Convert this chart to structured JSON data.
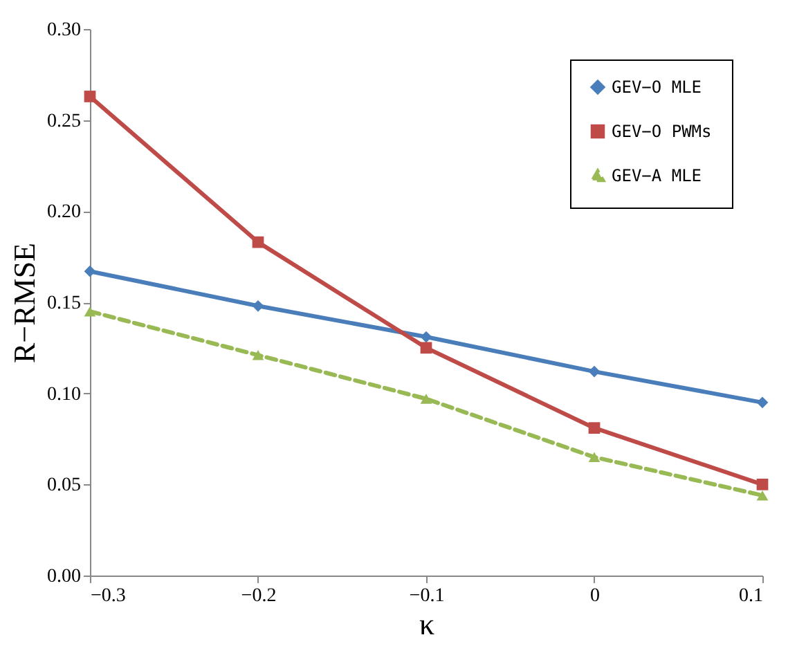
{
  "chart_data": {
    "type": "line",
    "xlabel": "κ",
    "ylabel": "R−RMSE",
    "x": [
      -0.3,
      -0.2,
      -0.1,
      0,
      0.1
    ],
    "series": [
      {
        "name": "GEV−O MLE",
        "color": "#4a7ebb",
        "marker": "diamond",
        "line_style": "solid",
        "values": [
          0.167,
          0.148,
          0.131,
          0.112,
          0.095
        ]
      },
      {
        "name": "GEV−O PWMs",
        "color": "#be4b48",
        "marker": "square",
        "line_style": "solid",
        "values": [
          0.263,
          0.183,
          0.125,
          0.081,
          0.05
        ]
      },
      {
        "name": "GEV−A MLE",
        "color": "#98b954",
        "marker": "triangle",
        "line_style": "dashed",
        "values": [
          0.145,
          0.121,
          0.097,
          0.065,
          0.044
        ]
      }
    ],
    "xlim": [
      -0.3,
      0.1
    ],
    "xticks": [
      {
        "value": -0.3,
        "label": "−0.3"
      },
      {
        "value": -0.2,
        "label": "−0.2"
      },
      {
        "value": -0.1,
        "label": "−0.1"
      },
      0,
      0.1
    ],
    "ylim": [
      0,
      0.3
    ],
    "yticks": [
      {
        "value": 0,
        "label": "0.00"
      },
      0.05,
      {
        "value": 0.1,
        "label": "0.10"
      },
      0.15,
      {
        "value": 0.2,
        "label": "0.20"
      },
      0.25,
      {
        "value": 0.3,
        "label": "0.30"
      }
    ],
    "legend": "top right",
    "grid": false
  }
}
